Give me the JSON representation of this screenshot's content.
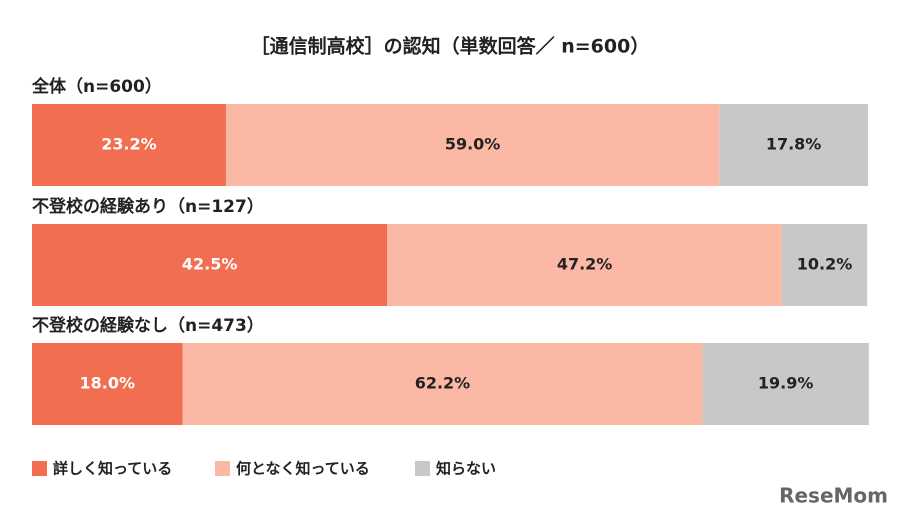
{
  "chart_data": {
    "type": "stacked-bar",
    "orientation": "horizontal",
    "title": "［通信制高校］の認知（単数回答／ n=600）",
    "categories": [
      "全体（n=600）",
      "不登校の経験あり（n=127）",
      "不登校の経験なし（n=473）"
    ],
    "series": [
      {
        "name": "詳しく知っている",
        "color": "#f26e50",
        "label_color": "#ffffff",
        "values": [
          23.2,
          42.5,
          18.0
        ],
        "value_labels": [
          "23.2%",
          "42.5%",
          "18.0%"
        ]
      },
      {
        "name": "何となく知っている",
        "color": "#fbb9a5",
        "label_color": "#222222",
        "values": [
          59.0,
          47.2,
          62.2
        ],
        "value_labels": [
          "59.0%",
          "47.2%",
          "62.2%"
        ]
      },
      {
        "name": "知らない",
        "color": "#c8c8c8",
        "label_color": "#222222",
        "values": [
          17.8,
          10.2,
          19.9
        ],
        "value_labels": [
          "17.8%",
          "10.2%",
          "19.9%"
        ]
      }
    ],
    "xlim": [
      0,
      100
    ],
    "legend": "bottom-left",
    "watermark": "ReseMom"
  }
}
